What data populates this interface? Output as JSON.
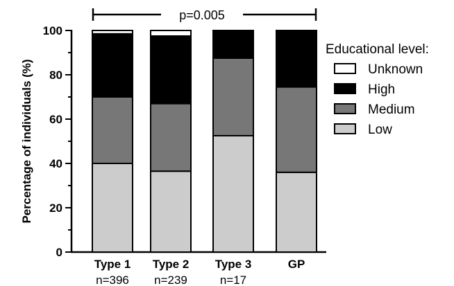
{
  "chart_data": {
    "type": "bar",
    "stacked": true,
    "categories": [
      "Type 1",
      "Type 2",
      "Type 3",
      "GP"
    ],
    "sample_sizes": [
      "n=396",
      "n=239",
      "n=17",
      ""
    ],
    "series": [
      {
        "name": "Low",
        "color": "#cccccc",
        "values": [
          40,
          36.5,
          52.5,
          36
        ]
      },
      {
        "name": "Medium",
        "color": "#777777",
        "values": [
          30,
          30.5,
          35,
          38.5
        ]
      },
      {
        "name": "High",
        "color": "#000000",
        "values": [
          28.5,
          30.5,
          12.5,
          25.5
        ]
      },
      {
        "name": "Unknown",
        "color": "#ffffff",
        "values": [
          1.5,
          2.5,
          0,
          0
        ]
      }
    ],
    "ylabel": "Percentage of individuals (%)",
    "ylim": [
      0,
      100
    ],
    "yticks": [
      0,
      20,
      40,
      60,
      80,
      100
    ],
    "legend": {
      "title": "Educational level:",
      "order": [
        "Unknown",
        "High",
        "Medium",
        "Low"
      ],
      "position": "right"
    },
    "annotation": "p=0.005",
    "grid": false
  }
}
